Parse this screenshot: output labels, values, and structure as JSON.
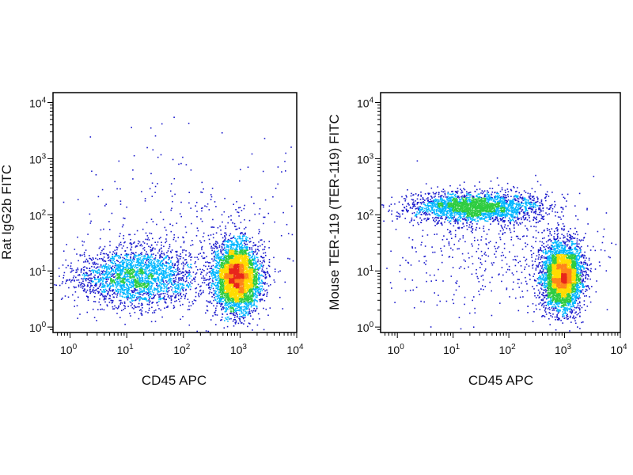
{
  "chart_data": [
    {
      "type": "scatter",
      "subtype": "flow-cytometry-density-plot",
      "title": "",
      "xlabel": "CD45 APC",
      "ylabel": "Rat IgG2b FITC",
      "x_scale": "log",
      "y_scale": "log",
      "xlim": [
        0.5,
        10000
      ],
      "ylim": [
        0.8,
        15000
      ],
      "x_ticks": [
        {
          "base": "10",
          "exp": "0",
          "value": 1
        },
        {
          "base": "10",
          "exp": "1",
          "value": 10
        },
        {
          "base": "10",
          "exp": "2",
          "value": 100
        },
        {
          "base": "10",
          "exp": "3",
          "value": 1000
        },
        {
          "base": "10",
          "exp": "4",
          "value": 10000
        }
      ],
      "y_ticks": [
        {
          "base": "10",
          "exp": "0",
          "value": 1
        },
        {
          "base": "10",
          "exp": "1",
          "value": 10
        },
        {
          "base": "10",
          "exp": "2",
          "value": 100
        },
        {
          "base": "10",
          "exp": "3",
          "value": 1000
        },
        {
          "base": "10",
          "exp": "4",
          "value": 10000
        }
      ],
      "grid": false,
      "colormap": [
        "#1a1acc",
        "#00b7ff",
        "#2ecc40",
        "#ffdc00",
        "#ff851b",
        "#e8261c"
      ],
      "populations": [
        {
          "center_x": 15,
          "center_y": 8,
          "spread_log_x": 0.55,
          "spread_log_y": 0.26,
          "share": 0.34
        },
        {
          "center_x": 850,
          "center_y": 8,
          "spread_log_x": 0.2,
          "spread_log_y": 0.3,
          "share": 0.6
        },
        {
          "center_x": 150,
          "center_y": 30,
          "spread_log_x": 1.0,
          "spread_log_y": 0.9,
          "share": 0.06
        }
      ]
    },
    {
      "type": "scatter",
      "subtype": "flow-cytometry-density-plot",
      "title": "",
      "xlabel": "CD45 APC",
      "ylabel": "Mouse TER-119 (TER-119) FITC",
      "x_scale": "log",
      "y_scale": "log",
      "xlim": [
        0.5,
        10000
      ],
      "ylim": [
        0.8,
        15000
      ],
      "x_ticks": [
        {
          "base": "10",
          "exp": "0",
          "value": 1
        },
        {
          "base": "10",
          "exp": "1",
          "value": 10
        },
        {
          "base": "10",
          "exp": "2",
          "value": 100
        },
        {
          "base": "10",
          "exp": "3",
          "value": 1000
        },
        {
          "base": "10",
          "exp": "4",
          "value": 10000
        }
      ],
      "y_ticks": [
        {
          "base": "10",
          "exp": "0",
          "value": 1
        },
        {
          "base": "10",
          "exp": "1",
          "value": 10
        },
        {
          "base": "10",
          "exp": "2",
          "value": 100
        },
        {
          "base": "10",
          "exp": "3",
          "value": 1000
        },
        {
          "base": "10",
          "exp": "4",
          "value": 10000
        }
      ],
      "grid": false,
      "colormap": [
        "#1a1acc",
        "#00b7ff",
        "#2ecc40",
        "#ffdc00",
        "#ff851b",
        "#e8261c"
      ],
      "populations": [
        {
          "center_x": 25,
          "center_y": 140,
          "spread_log_x": 0.6,
          "spread_log_y": 0.13,
          "share": 0.36
        },
        {
          "center_x": 900,
          "center_y": 8,
          "spread_log_x": 0.18,
          "spread_log_y": 0.3,
          "share": 0.56
        },
        {
          "center_x": 80,
          "center_y": 25,
          "spread_log_x": 1.0,
          "spread_log_y": 0.55,
          "share": 0.08
        }
      ]
    }
  ]
}
